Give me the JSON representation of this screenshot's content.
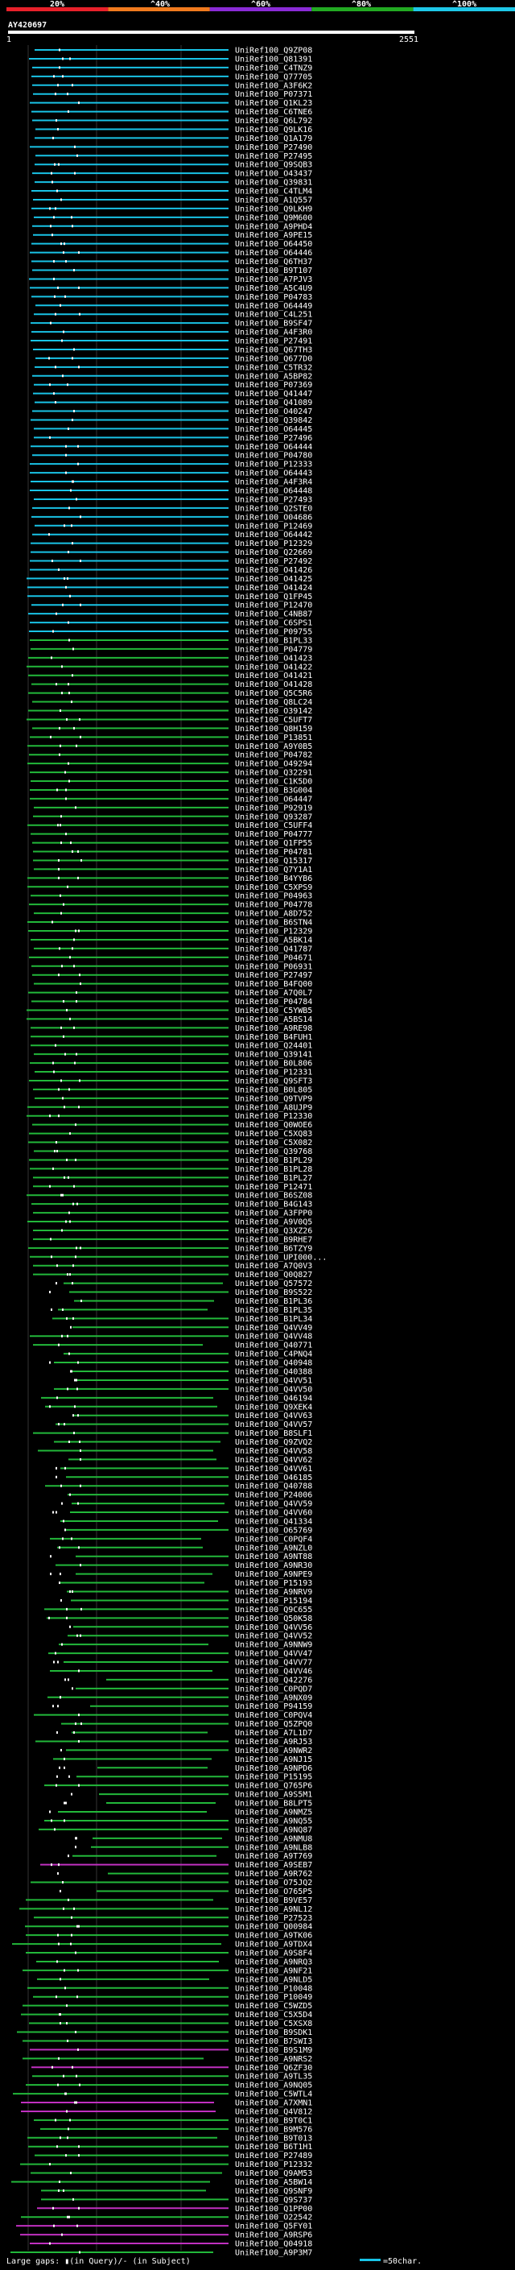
{
  "chart_data": {
    "type": "alignment-overview",
    "query_id": "AY420697",
    "axis_start": "1",
    "axis_end": "2551",
    "identity_scale": {
      "labels": [
        "20%",
        "^40%",
        "^60%",
        "^80%",
        "^100%"
      ],
      "colors": [
        "#e8202a",
        "#f07a1e",
        "#8a2bd6",
        "#22aa22",
        "#1ec8e8"
      ]
    },
    "series_colors": {
      "cyan": "#19c3e6",
      "green": "#22b83a",
      "magenta": "#c030c0"
    },
    "hits": [
      "UniRef100_Q9ZP08",
      "UniRef100_Q81391",
      "UniRef100_C4TNZ9",
      "UniRef100_Q77705",
      "UniRef100_A3F6K2",
      "UniRef100_P07371",
      "UniRef100_Q1KL23",
      "UniRef100_C6TNE6",
      "UniRef100_Q6L792",
      "UniRef100_Q9LK16",
      "UniRef100_Q1A179",
      "UniRef100_P27490",
      "UniRef100_P27495",
      "UniRef100_Q9SQB3",
      "UniRef100_O43437",
      "UniRef100_Q39831",
      "UniRef100_C4TLM4",
      "UniRef100_A1Q557",
      "UniRef100_Q9LKH9",
      "UniRef100_Q9M600",
      "UniRef100_A9PHD4",
      "UniRef100_A9PE15",
      "UniRef100_O64450",
      "UniRef100_O64446",
      "UniRef100_Q6TH37",
      "UniRef100_B9T107",
      "UniRef100_A7PJV3",
      "UniRef100_A5C4U9",
      "UniRef100_P04783",
      "UniRef100_O64449",
      "UniRef100_C4L251",
      "UniRef100_B9SF47",
      "UniRef100_A4F3R0",
      "UniRef100_P27491",
      "UniRef100_Q67TH3",
      "UniRef100_Q677D0",
      "UniRef100_C5TR32",
      "UniRef100_A5BP82",
      "UniRef100_P07369",
      "UniRef100_Q41447",
      "UniRef100_Q41089",
      "UniRef100_O40247",
      "UniRef100_Q39842",
      "UniRef100_O64445",
      "UniRef100_P27496",
      "UniRef100_O64444",
      "UniRef100_P04780",
      "UniRef100_P12333",
      "UniRef100_O64443",
      "UniRef100_A4F3R4",
      "UniRef100_O64448",
      "UniRef100_P27493",
      "UniRef100_Q2STE0",
      "UniRef100_O04686",
      "UniRef100_P12469",
      "UniRef100_O64442",
      "UniRef100_P12329",
      "UniRef100_Q22669",
      "UniRef100_P27492",
      "UniRef100_O41426",
      "UniRef100_O41425",
      "UniRef100_O41424",
      "UniRef100_Q1FP45",
      "UniRef100_P12470",
      "UniRef100_C4NB87",
      "UniRef100_C6SPS1",
      "UniRef100_P09755",
      "UniRef100_B1PL33",
      "UniRef100_P04779",
      "UniRef100_O41423",
      "UniRef100_O41422",
      "UniRef100_O41421",
      "UniRef100_O41428",
      "UniRef100_Q5C5R6",
      "UniRef100_Q8LC24",
      "UniRef100_O39142",
      "UniRef100_C5UFT7",
      "UniRef100_Q8H159",
      "UniRef100_P13851",
      "UniRef100_A9Y0B5",
      "UniRef100_P04782",
      "UniRef100_O49294",
      "UniRef100_Q32291",
      "UniRef100_C1K5D0",
      "UniRef100_B3G004",
      "UniRef100_O64447",
      "UniRef100_P92919",
      "UniRef100_Q93287",
      "UniRef100_C5UFF4",
      "UniRef100_P04777",
      "UniRef100_Q1FP55",
      "UniRef100_P04781",
      "UniRef100_Q15317",
      "UniRef100_Q7Y1A1",
      "UniRef100_B4YYB6",
      "UniRef100_C5XPS9",
      "UniRef100_P04963",
      "UniRef100_P04778",
      "UniRef100_A8D752",
      "UniRef100_B6STN4",
      "UniRef100_P12329",
      "UniRef100_A5BK14",
      "UniRef100_Q41787",
      "UniRef100_P04671",
      "UniRef100_P06931",
      "UniRef100_P27497",
      "UniRef100_B4FQ00",
      "UniRef100_A7Q0L7",
      "UniRef100_P04784",
      "UniRef100_C5YWB5",
      "UniRef100_A5BS14",
      "UniRef100_A9RE98",
      "UniRef100_B4FUH1",
      "UniRef100_Q24401",
      "UniRef100_Q39141",
      "UniRef100_B0L806",
      "UniRef100_P12331",
      "UniRef100_Q9SFT3",
      "UniRef100_B0L805",
      "UniRef100_Q9TVP9",
      "UniRef100_A8UJP9",
      "UniRef100_P12330",
      "UniRef100_Q0WOE6",
      "UniRef100_C5XQ83",
      "UniRef100_C5X082",
      "UniRef100_Q39768",
      "UniRef100_B1PL29",
      "UniRef100_B1PL28",
      "UniRef100_B1PL27",
      "UniRef100_P12471",
      "UniRef100_B6SZ08",
      "UniRef100_B4G143",
      "UniRef100_A3FPP0",
      "UniRef100_A9V0Q5",
      "UniRef100_Q3XZ26",
      "UniRef100_B9RHE7",
      "UniRef100_B6TZY9",
      "UniRef100_UPI000...",
      "UniRef100_A7Q0V3",
      "UniRef100_Q0Q827",
      "UniRef100_Q57572",
      "UniRef100_B9S522",
      "UniRef100_B1PL36",
      "UniRef100_B1PL35",
      "UniRef100_B1PL34",
      "UniRef100_Q4VV49",
      "UniRef100_Q4VV48",
      "UniRef100_Q40771",
      "UniRef100_C4PNQ4",
      "UniRef100_Q40948",
      "UniRef100_Q40388",
      "UniRef100_Q4VV51",
      "UniRef100_Q4VV50",
      "UniRef100_Q46194",
      "UniRef100_Q9XEK4",
      "UniRef100_Q4VV63",
      "UniRef100_Q4VV57",
      "UniRef100_B8SLF1",
      "UniRef100_Q9ZVQ2",
      "UniRef100_Q4VV58",
      "UniRef100_Q4VV62",
      "UniRef100_Q4VV61",
      "UniRef100_O46185",
      "UniRef100_Q40788",
      "UniRef100_P24006",
      "UniRef100_Q4VV59",
      "UniRef100_Q4VV60",
      "UniRef100_Q41334",
      "UniRef100_O65769",
      "UniRef100_C0PQF4",
      "UniRef100_A9NZL0",
      "UniRef100_A9NT88",
      "UniRef100_A9NR30",
      "UniRef100_A9NPE9",
      "UniRef100_P15193",
      "UniRef100_A9NRV9",
      "UniRef100_P15194",
      "UniRef100_Q9C655",
      "UniRef100_Q50K58",
      "UniRef100_Q4VV56",
      "UniRef100_Q4VV52",
      "UniRef100_A9NNW9",
      "UniRef100_Q4VV47",
      "UniRef100_Q4VV77",
      "UniRef100_Q4VV46",
      "UniRef100_Q42276",
      "UniRef100_C0PQD7",
      "UniRef100_A9NX09",
      "UniRef100_P94159",
      "UniRef100_C0PQV4",
      "UniRef100_Q5ZPQ0",
      "UniRef100_A7L1D7",
      "UniRef100_A9RJ53",
      "UniRef100_A9NWR2",
      "UniRef100_A9NJ15",
      "UniRef100_A9NPD6",
      "UniRef100_P15195",
      "UniRef100_Q765P6",
      "UniRef100_A9S5M1",
      "UniRef100_B8LPT5",
      "UniRef100_A9NMZ5",
      "UniRef100_A9NQ55",
      "UniRef100_A9NQ87",
      "UniRef100_A9NMU8",
      "UniRef100_A9NLB8",
      "UniRef100_A9T769",
      "UniRef100_A9SEB7",
      "UniRef100_A9R762",
      "UniRef100_O75JQ2",
      "UniRef100_O765P5",
      "UniRef100_B9VE57",
      "UniRef100_A9NL12",
      "UniRef100_P27523",
      "UniRef100_Q00984",
      "UniRef100_A9TK06",
      "UniRef100_A9TDX4",
      "UniRef100_A9S8F4",
      "UniRef100_A9NRQ3",
      "UniRef100_A9NF21",
      "UniRef100_A9NLD5",
      "UniRef100_P10048",
      "UniRef100_P10049",
      "UniRef100_C5WZD5",
      "UniRef100_C5X5D4",
      "UniRef100_C5XSX8",
      "UniRef100_B9SDK1",
      "UniRef100_B7SWI3",
      "UniRef100_B9S1M9",
      "UniRef100_A9NRS2",
      "UniRef100_Q6ZF30",
      "UniRef100_A9TL35",
      "UniRef100_A9NQ05",
      "UniRef100_C5WTL4",
      "UniRef100_A7XMN1",
      "UniRef100_Q4V812",
      "UniRef100_B9T0C1",
      "UniRef100_B9M576",
      "UniRef100_B9T013",
      "UniRef100_B6T1H1",
      "UniRef100_P27489",
      "UniRef100_P12332",
      "UniRef100_Q9AM53",
      "UniRef100_A5BW14",
      "UniRef100_Q9SNF9",
      "UniRef100_Q9S737",
      "UniRef100_Q1PP00",
      "UniRef100_O22542",
      "UniRef100_Q5FY01",
      "UniRef100_A9RSP6",
      "UniRef100_Q04918",
      "UniRef100_A9P3M7"
    ],
    "footer": {
      "gaps_text": "Large gaps: ▮(in Query)/- (in Subject)",
      "scale_text": "=50char."
    }
  }
}
